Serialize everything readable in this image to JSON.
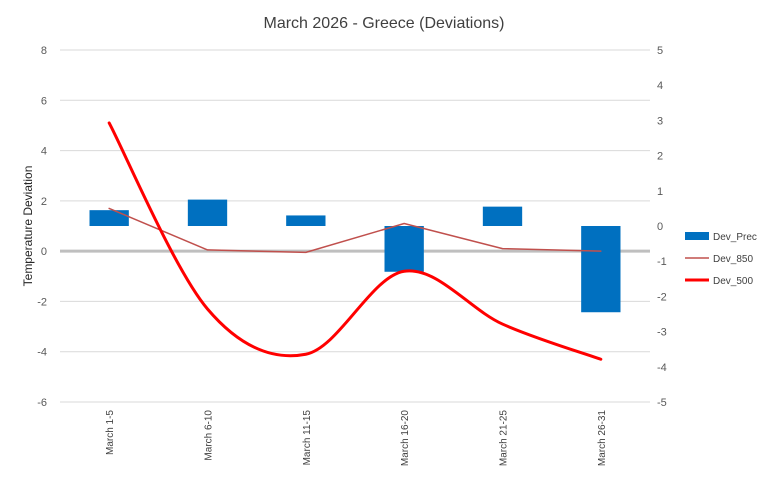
{
  "chart_data": {
    "type": "bar",
    "title": "March 2026 - Greece (Deviations)",
    "ylabel": "Temperature Deviation",
    "xlabel": "",
    "categories": [
      "March 1-5",
      "March 6-10",
      "March 11-15",
      "March 16-20",
      "March 21-25",
      "March 26-31"
    ],
    "ylim": [
      -6,
      8
    ],
    "yticks": [
      "-6",
      "-4",
      "-2",
      "0",
      "2",
      "4",
      "6",
      "8"
    ],
    "y2lim": [
      -5,
      5
    ],
    "y2ticks": [
      "-5",
      "-4",
      "-3",
      "-2",
      "-1",
      "0",
      "1",
      "2",
      "3",
      "4",
      "5"
    ],
    "series": [
      {
        "name": "Dev_Prec",
        "type": "bar",
        "axis": "secondary",
        "values": [
          0.45,
          0.75,
          0.3,
          -1.3,
          0.55,
          -2.45
        ],
        "color": "#0070C0"
      },
      {
        "name": "Dev_850",
        "type": "line",
        "axis": "primary",
        "values": [
          1.7,
          0.05,
          -0.05,
          1.1,
          0.1,
          0.0
        ],
        "color": "#C0504D"
      },
      {
        "name": "Dev_500",
        "type": "line",
        "smooth": true,
        "axis": "primary",
        "values": [
          5.1,
          -2.3,
          -4.1,
          -0.8,
          -2.9,
          -4.3
        ],
        "color": "#FF0000"
      }
    ],
    "legend_position": "right",
    "grid": true
  }
}
